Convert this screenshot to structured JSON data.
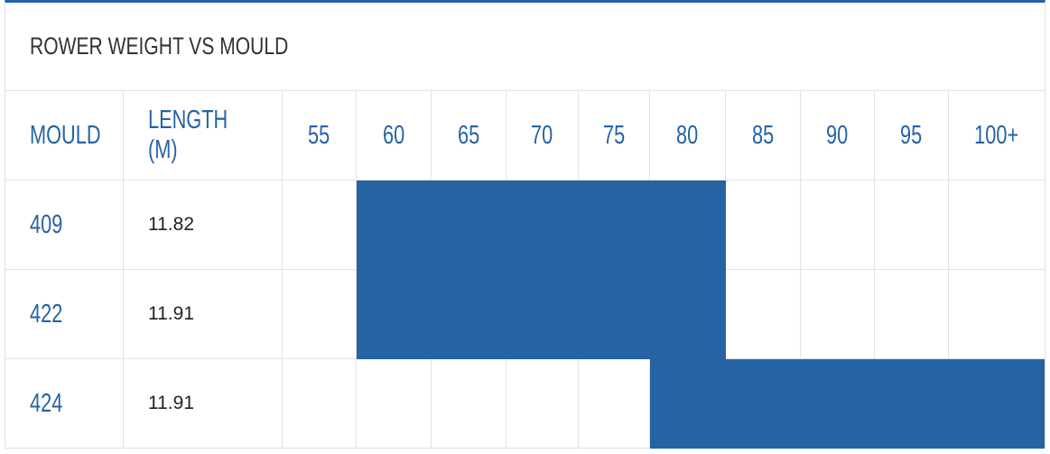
{
  "table": {
    "title": "ROWER WEIGHT VS MOULD",
    "fill_color": "#2563a3",
    "header": [
      "MOULD",
      "LENGTH (M)",
      "55",
      "60",
      "65",
      "70",
      "75",
      "80",
      "85",
      "90",
      "95",
      "100+"
    ],
    "rows": [
      {
        "mould": "409",
        "length": "11.82",
        "fit": [
          false,
          true,
          true,
          true,
          true,
          true,
          false,
          false,
          false,
          false
        ]
      },
      {
        "mould": "422",
        "length": "11.91",
        "fit": [
          false,
          true,
          true,
          true,
          true,
          true,
          false,
          false,
          false,
          false
        ]
      },
      {
        "mould": "424",
        "length": "11.91",
        "fit": [
          false,
          false,
          false,
          false,
          false,
          true,
          true,
          true,
          true,
          true
        ]
      }
    ]
  }
}
